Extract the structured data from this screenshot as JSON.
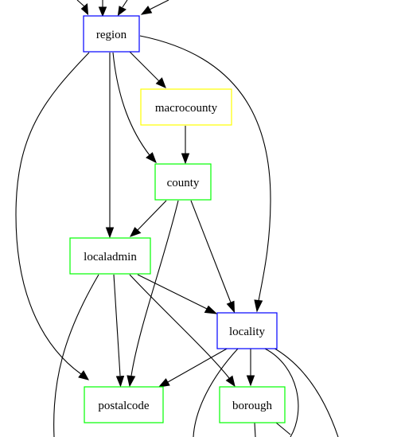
{
  "graph": {
    "nodes": [
      {
        "id": "region",
        "label": "region",
        "border_color": "#0000ff"
      },
      {
        "id": "macrocounty",
        "label": "macrocounty",
        "border_color": "#ffff00"
      },
      {
        "id": "county",
        "label": "county",
        "border_color": "#00ff00"
      },
      {
        "id": "localadmin",
        "label": "localadmin",
        "border_color": "#00ff00"
      },
      {
        "id": "locality",
        "label": "locality",
        "border_color": "#0000ff"
      },
      {
        "id": "postalcode",
        "label": "postalcode",
        "border_color": "#00ff00"
      },
      {
        "id": "borough",
        "label": "borough",
        "border_color": "#00ff00"
      }
    ],
    "edges": [
      {
        "from": "region",
        "to": "macrocounty"
      },
      {
        "from": "region",
        "to": "county"
      },
      {
        "from": "region",
        "to": "localadmin"
      },
      {
        "from": "region",
        "to": "locality"
      },
      {
        "from": "region",
        "to": "postalcode"
      },
      {
        "from": "macrocounty",
        "to": "county"
      },
      {
        "from": "county",
        "to": "localadmin"
      },
      {
        "from": "county",
        "to": "locality"
      },
      {
        "from": "county",
        "to": "postalcode"
      },
      {
        "from": "localadmin",
        "to": "locality"
      },
      {
        "from": "localadmin",
        "to": "postalcode"
      },
      {
        "from": "localadmin",
        "to": "borough"
      },
      {
        "from": "locality",
        "to": "postalcode"
      },
      {
        "from": "locality",
        "to": "borough"
      }
    ]
  }
}
